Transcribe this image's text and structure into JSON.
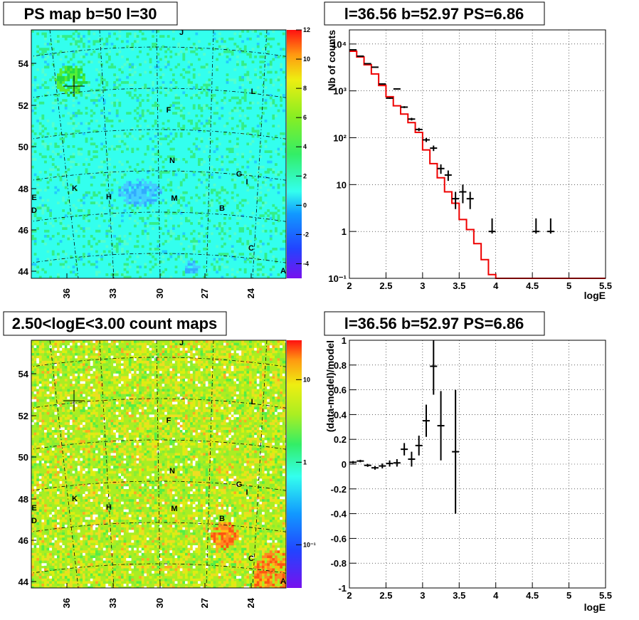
{
  "chart_data": [
    {
      "type": "heatmap",
      "title": "PS map b=50 l=30",
      "x_tick_labels": [
        "36",
        "33",
        "30",
        "27",
        "24"
      ],
      "y_tick_labels": [
        "44",
        "46",
        "48",
        "50",
        "52",
        "54"
      ],
      "colorbar": {
        "scale": "linear",
        "range": [
          -5,
          12
        ],
        "tick_labels": [
          "-4",
          "-2",
          "0",
          "2",
          "4",
          "6",
          "8",
          "10",
          "12"
        ]
      },
      "sources": [
        "J",
        "L",
        "F",
        "N",
        "G",
        "I",
        "K",
        "H",
        "M",
        "B",
        "E",
        "D",
        "C",
        "A"
      ],
      "colors": {
        "background": "#33ffee",
        "hot": "#33ee55"
      }
    },
    {
      "type": "line",
      "title": "l=36.56 b=52.97 PS=6.86",
      "xlabel": "logE",
      "ylabel": "Nb of counts",
      "xlim": [
        2,
        5.5
      ],
      "ylim": [
        0.1,
        20000
      ],
      "y_scale": "log",
      "grid": true,
      "x_tick_labels": [
        "2",
        "2.5",
        "3",
        "3.5",
        "4",
        "4.5",
        "5",
        "5.5"
      ],
      "y_tick_labels": [
        "10⁻¹",
        "1",
        "10",
        "10²",
        "10³",
        "10⁴"
      ],
      "series": [
        {
          "kind": "points",
          "x": [
            2.05,
            2.15,
            2.25,
            2.35,
            2.45,
            2.55,
            2.65,
            2.75,
            2.85,
            2.95,
            3.05,
            3.15,
            3.25,
            3.35,
            3.45,
            3.55,
            3.65,
            3.95,
            4.55,
            4.75
          ],
          "y": [
            7500,
            5500,
            3800,
            3200,
            1400,
            700,
            1100,
            450,
            250,
            150,
            90,
            60,
            22,
            16,
            5,
            7,
            5,
            1,
            1,
            1
          ],
          "yerr_low": [
            7413,
            5426,
            3738,
            3143,
            1363,
            674,
            1067,
            429,
            234,
            138,
            81,
            52,
            17,
            12,
            3,
            4,
            3,
            0.9,
            0.9,
            0.9
          ],
          "yerr_high": [
            7587,
            5574,
            3862,
            3257,
            1437,
            726,
            1133,
            471,
            266,
            162,
            99,
            68,
            27,
            20,
            7,
            10,
            7,
            1.9,
            1.9,
            1.9
          ]
        },
        {
          "kind": "step",
          "x_edges": [
            2.0,
            2.1,
            2.2,
            2.3,
            2.4,
            2.5,
            2.6,
            2.7,
            2.8,
            2.9,
            3.0,
            3.1,
            3.2,
            3.3,
            3.4,
            3.5,
            3.6,
            3.7,
            3.8,
            3.9,
            4.0,
            5.5
          ],
          "values": [
            7000,
            5300,
            3600,
            2300,
            1300,
            750,
            480,
            320,
            210,
            130,
            55,
            28,
            14,
            7,
            4,
            1.8,
            1.1,
            0.55,
            0.25,
            0.12,
            0.1
          ],
          "color": "#ee0000"
        }
      ]
    },
    {
      "type": "heatmap",
      "title": "2.50<logE<3.00 count maps",
      "x_tick_labels": [
        "36",
        "33",
        "30",
        "27",
        "24"
      ],
      "y_tick_labels": [
        "44",
        "46",
        "48",
        "50",
        "52",
        "54"
      ],
      "colorbar": {
        "scale": "log",
        "range": [
          0.03,
          30
        ],
        "tick_labels": [
          "10⁻¹",
          "1",
          "10"
        ]
      },
      "sources": [
        "J",
        "L",
        "F",
        "N",
        "G",
        "I",
        "K",
        "H",
        "M",
        "B",
        "E",
        "D",
        "C",
        "A"
      ],
      "colors": {
        "background": "#aaee22",
        "hot": "#ff8822"
      }
    },
    {
      "type": "scatter",
      "title": "l=36.56 b=52.97 PS=6.86",
      "xlabel": "logE",
      "ylabel": "(data-model)/model",
      "xlim": [
        2,
        5.5
      ],
      "ylim": [
        -1,
        1
      ],
      "grid": true,
      "x_tick_labels": [
        "2",
        "2.5",
        "3",
        "3.5",
        "4",
        "4.5",
        "5",
        "5.5"
      ],
      "y_tick_labels": [
        "-1",
        "-0.8",
        "-0.6",
        "-0.4",
        "-0.2",
        "0",
        "0.2",
        "0.4",
        "0.6",
        "0.8",
        "1"
      ],
      "series": [
        {
          "x": [
            2.05,
            2.15,
            2.25,
            2.35,
            2.45,
            2.55,
            2.65,
            2.75,
            2.85,
            2.95,
            3.05,
            3.15,
            3.25,
            3.45
          ],
          "y": [
            0.015,
            0.025,
            -0.01,
            -0.03,
            -0.015,
            0.005,
            0.01,
            0.12,
            0.04,
            0.15,
            0.35,
            0.79,
            0.31,
            0.1
          ],
          "yerr": [
            0.01,
            0.01,
            0.012,
            0.015,
            0.02,
            0.025,
            0.03,
            0.05,
            0.06,
            0.08,
            0.13,
            0.23,
            0.28,
            0.5
          ]
        }
      ]
    }
  ]
}
